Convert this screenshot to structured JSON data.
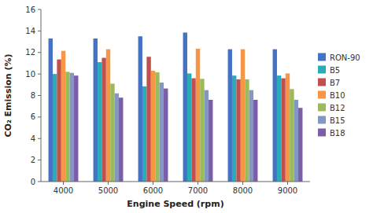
{
  "chart_data": {
    "type": "bar",
    "xlabel": "Engine Speed (rpm)",
    "ylabel": "CO₂ Emission (%)",
    "categories": [
      "4000",
      "5000",
      "6000",
      "7000",
      "8000",
      "9000"
    ],
    "series": [
      {
        "name": "RON-90",
        "color": "#4472C4",
        "values": [
          13.3,
          13.3,
          13.5,
          13.85,
          12.3,
          12.3
        ]
      },
      {
        "name": "B5",
        "color": "#29ABB8",
        "values": [
          10.0,
          11.1,
          8.85,
          10.05,
          9.85,
          9.85
        ]
      },
      {
        "name": "B7",
        "color": "#C0504D",
        "values": [
          11.35,
          11.5,
          11.6,
          9.6,
          9.5,
          9.6
        ]
      },
      {
        "name": "B10",
        "color": "#F79646",
        "values": [
          12.15,
          12.3,
          10.3,
          12.35,
          12.3,
          10.05
        ]
      },
      {
        "name": "B12",
        "color": "#9BBB59",
        "values": [
          10.2,
          9.1,
          10.15,
          9.55,
          9.5,
          8.6
        ]
      },
      {
        "name": "B15",
        "color": "#8496C4",
        "values": [
          10.1,
          8.2,
          9.2,
          8.5,
          8.5,
          7.6
        ]
      },
      {
        "name": "B18",
        "color": "#7B5EA7",
        "values": [
          9.85,
          7.8,
          8.65,
          7.6,
          7.6,
          6.85
        ]
      }
    ],
    "ylim": [
      0,
      16
    ],
    "yticks": [
      0,
      2,
      4,
      6,
      8,
      10,
      12,
      14,
      16
    ],
    "grid": false,
    "legend": "right"
  }
}
